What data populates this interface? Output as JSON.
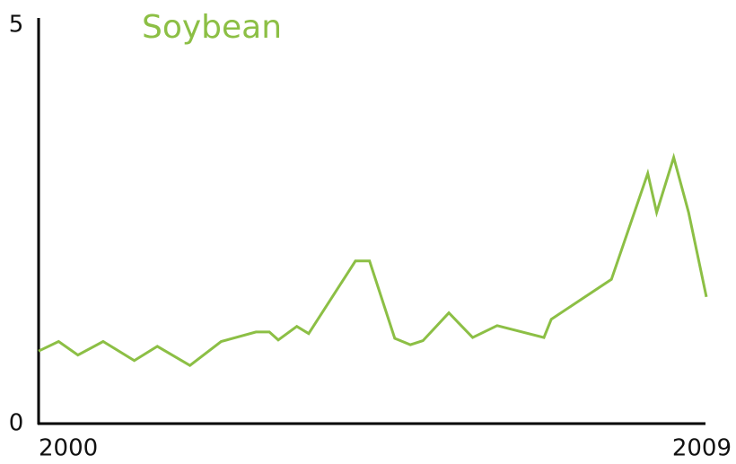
{
  "chart_data": {
    "type": "line",
    "title": "Soybean",
    "x": [
      2000.0,
      2000.27,
      2000.53,
      2000.87,
      2001.29,
      2001.6,
      2002.04,
      2002.46,
      2002.93,
      2003.11,
      2003.23,
      2003.48,
      2003.64,
      2004.27,
      2004.46,
      2004.8,
      2005.01,
      2005.18,
      2005.53,
      2005.85,
      2006.18,
      2006.81,
      2006.91,
      2007.72,
      2008.21,
      2008.33,
      2008.56,
      2008.76,
      2009.0
    ],
    "series": [
      {
        "name": "Soybean",
        "color": "#8cbf45",
        "values": [
          0.91,
          1.03,
          0.86,
          1.03,
          0.79,
          0.97,
          0.73,
          1.03,
          1.15,
          1.15,
          1.05,
          1.22,
          1.13,
          2.04,
          2.04,
          1.07,
          0.99,
          1.04,
          1.39,
          1.08,
          1.23,
          1.08,
          1.31,
          1.81,
          3.14,
          2.65,
          3.34,
          2.65,
          1.59
        ]
      }
    ],
    "xlim": [
      2000,
      2009
    ],
    "xticks": [
      2000,
      2009
    ],
    "ylim": [
      0,
      5
    ],
    "yticks": [
      0,
      5
    ],
    "grid": false
  }
}
